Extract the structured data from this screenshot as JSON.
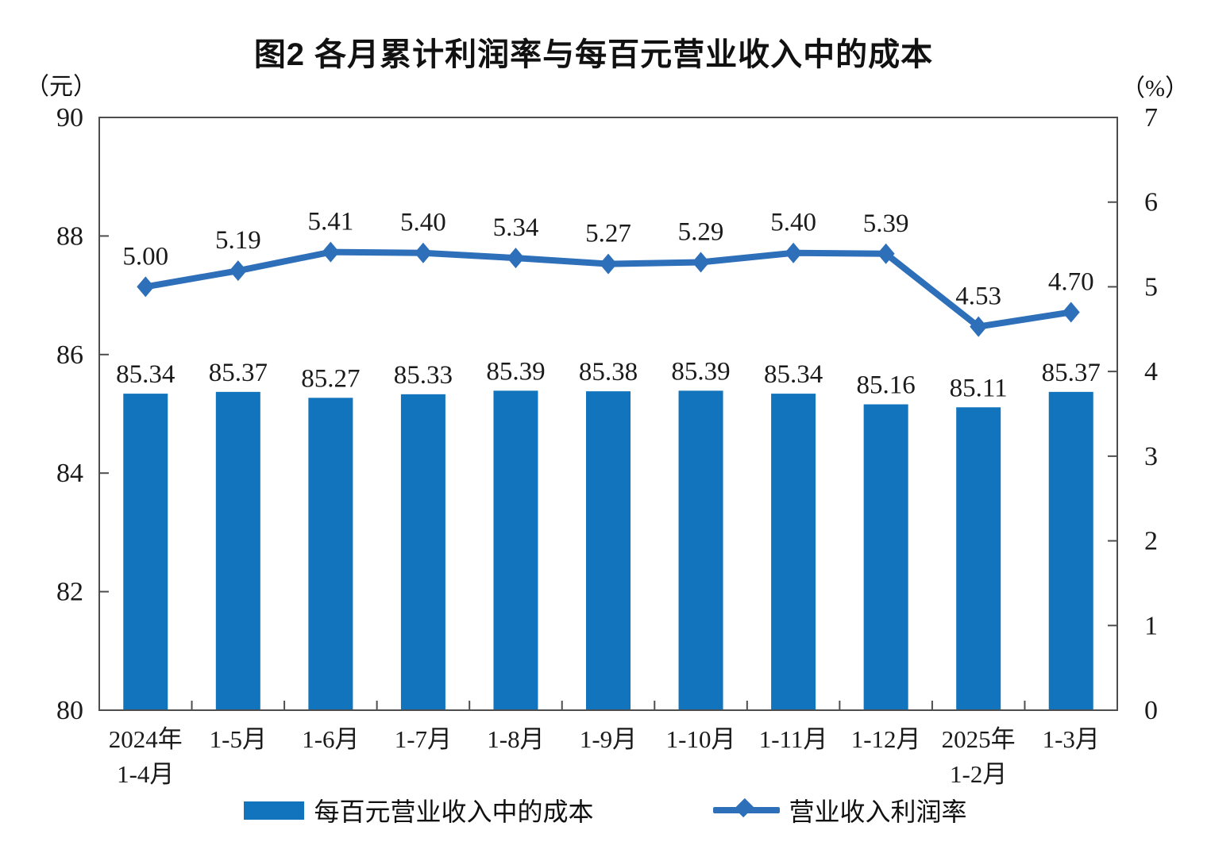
{
  "title": "图2  各月累计利润率与每百元营业收入中的成本",
  "left_axis_unit": "（元）",
  "right_axis_unit": "（%）",
  "legend": {
    "bar_label": "每百元营业收入中的成本",
    "line_label": "营业收入利润率"
  },
  "colors": {
    "bar": "#1274BC",
    "line": "#2E6FBA",
    "axis": "#4d4d4d",
    "text": "#1a1a1a"
  },
  "chart_data": {
    "type": "combo-bar-line",
    "categories": [
      [
        "2024年",
        "1-4月"
      ],
      [
        "1-5月"
      ],
      [
        "1-6月"
      ],
      [
        "1-7月"
      ],
      [
        "1-8月"
      ],
      [
        "1-9月"
      ],
      [
        "1-10月"
      ],
      [
        "1-11月"
      ],
      [
        "1-12月"
      ],
      [
        "2025年",
        "1-2月"
      ],
      [
        "1-3月"
      ]
    ],
    "series": [
      {
        "name": "每百元营业收入中的成本",
        "type": "bar",
        "axis": "left",
        "color": "#1274BC",
        "values": [
          85.34,
          85.37,
          85.27,
          85.33,
          85.39,
          85.38,
          85.39,
          85.34,
          85.16,
          85.11,
          85.37
        ]
      },
      {
        "name": "营业收入利润率",
        "type": "line",
        "axis": "right",
        "color": "#2E6FBA",
        "values": [
          5.0,
          5.19,
          5.41,
          5.4,
          5.34,
          5.27,
          5.29,
          5.4,
          5.39,
          4.53,
          4.7
        ]
      }
    ],
    "left_axis": {
      "label": "（元）",
      "min": 80,
      "max": 90,
      "step": 2
    },
    "right_axis": {
      "label": "（%）",
      "min": 0,
      "max": 7,
      "step": 1
    },
    "grid": false,
    "legend_position": "bottom",
    "value_label_decimals": 2
  }
}
